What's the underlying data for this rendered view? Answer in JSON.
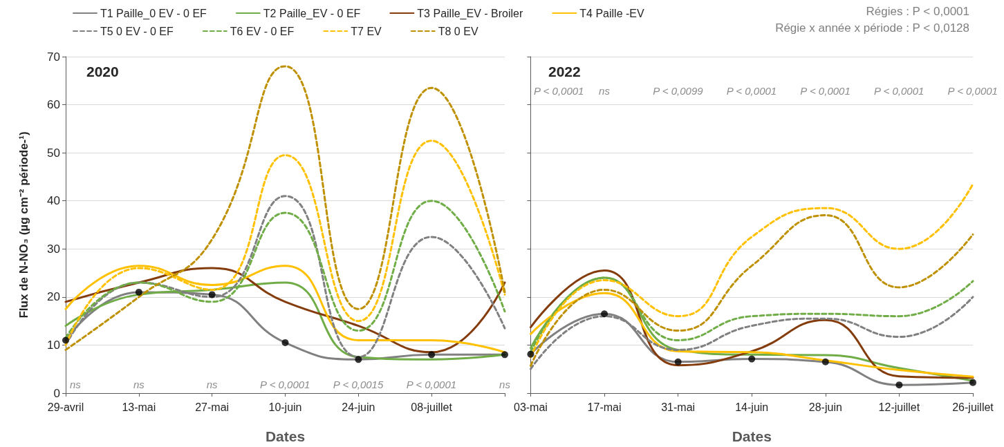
{
  "chart_data": [
    {
      "type": "line",
      "title": "2020",
      "ylabel": "Flux de N-NO₃ (µg cm⁻² période-¹)",
      "xlabel": "Dates",
      "categories": [
        "29-avril",
        "13-mai",
        "27-mai",
        "10-juin",
        "24-juin",
        "08-juillet",
        null
      ],
      "ylim": [
        0,
        70
      ],
      "yticks": [
        0,
        10,
        20,
        30,
        40,
        50,
        60,
        70
      ],
      "grid": "y",
      "legend": "top",
      "marker": "none",
      "series": [
        {
          "name": "T1 Paille_0 EV - 0 EF",
          "color": "#808080",
          "line_style": "solid",
          "values": [
            11,
            21,
            20.5,
            10.5,
            7,
            8,
            8
          ]
        },
        {
          "name": "T2 Paille_EV - 0 EF",
          "color": "#70ad47",
          "line_style": "solid",
          "values": [
            14,
            20.5,
            21.5,
            23,
            7.5,
            7,
            8
          ]
        },
        {
          "name": "T3 Paille_EV - Broiler",
          "color": "#843c0c",
          "line_style": "solid",
          "values": [
            19,
            23,
            26,
            19,
            14,
            8.5,
            23
          ]
        },
        {
          "name": "T4 Paille -EV",
          "color": "#ffc000",
          "line_style": "solid",
          "values": [
            17.5,
            26.5,
            22.5,
            26.5,
            11,
            11,
            8.5
          ]
        },
        {
          "name": "T5 0 EV - 0 EF",
          "color": "#808080",
          "line_style": "dashed",
          "values": [
            10,
            23,
            20,
            41,
            7.5,
            32.5,
            13.5
          ]
        },
        {
          "name": "T6 EV - 0 EF",
          "color": "#70ad47",
          "line_style": "dashed",
          "values": [
            11.5,
            23,
            19,
            37.5,
            13,
            40,
            17
          ]
        },
        {
          "name": "T7 EV",
          "color": "#ffc000",
          "line_style": "dashed",
          "values": [
            10,
            26,
            21.5,
            49.5,
            15,
            52.5,
            20.5
          ]
        },
        {
          "name": "T8 0 EV",
          "color": "#bf9000",
          "line_style": "dashed",
          "values": [
            9,
            20,
            32,
            68,
            17.5,
            63.5,
            21
          ]
        },
        {
          "type": "scatter",
          "marker": "circle",
          "color": "#000000",
          "values": [
            11,
            21,
            20.5,
            10.5,
            7,
            8,
            8
          ]
        }
      ],
      "annotations": [
        "ns",
        "ns",
        "ns",
        "P < 0,0001",
        "P < 0,0015",
        "P < 0,0001",
        "ns"
      ]
    },
    {
      "type": "line",
      "title": "2022",
      "xlabel": "Dates",
      "categories": [
        "03-mai",
        "17-mai",
        "31-mai",
        "14-juin",
        "28-juin",
        "12-juillet",
        "26-juillet"
      ],
      "ylim": [
        0,
        70
      ],
      "yticks": [
        0,
        10,
        20,
        30,
        40,
        50,
        60,
        70
      ],
      "grid": "y",
      "tick_labels": "x",
      "marker": "none",
      "series": [
        {
          "color": "#808080",
          "line_style": "solid",
          "values": [
            8.1,
            16.5,
            6.5,
            7.1,
            6.5,
            1.7,
            2.2
          ]
        },
        {
          "color": "#70ad47",
          "line_style": "solid",
          "values": [
            9.4,
            24,
            9,
            8,
            7.9,
            5.2,
            2.6
          ]
        },
        {
          "color": "#843c0c",
          "line_style": "solid",
          "values": [
            13.7,
            25.5,
            5.8,
            8.7,
            15.2,
            3.5,
            3.2
          ]
        },
        {
          "color": "#ffc000",
          "line_style": "solid",
          "values": [
            12.3,
            20.8,
            8.7,
            8.5,
            6.8,
            4.8,
            3.4
          ]
        },
        {
          "color": "#808080",
          "line_style": "dashed",
          "values": [
            5,
            16,
            9,
            14,
            15.5,
            11.7,
            20
          ]
        },
        {
          "color": "#70ad47",
          "line_style": "dashed",
          "values": [
            8.6,
            24,
            11,
            16,
            16.5,
            16,
            23.3
          ]
        },
        {
          "color": "#ffc000",
          "line_style": "dashed",
          "values": [
            7.5,
            23.5,
            16,
            32.5,
            38.5,
            30,
            43.5
          ]
        },
        {
          "color": "#bf9000",
          "line_style": "dashed",
          "values": [
            5.7,
            21.5,
            13,
            26.5,
            37,
            22,
            33
          ]
        },
        {
          "type": "scatter",
          "marker": "circle",
          "color": "#000000",
          "values": [
            8.1,
            16.5,
            6.5,
            7.1,
            6.5,
            1.7,
            2.2
          ]
        }
      ],
      "annotations": [
        "P < 0,0001",
        "ns",
        "P < 0,0099",
        "P < 0,0001",
        "P < 0,0001",
        "P < 0,0001",
        "P < 0,0001",
        "Régies : P < 0,0001",
        "Régie x année x période : P < 0,0128"
      ]
    }
  ]
}
